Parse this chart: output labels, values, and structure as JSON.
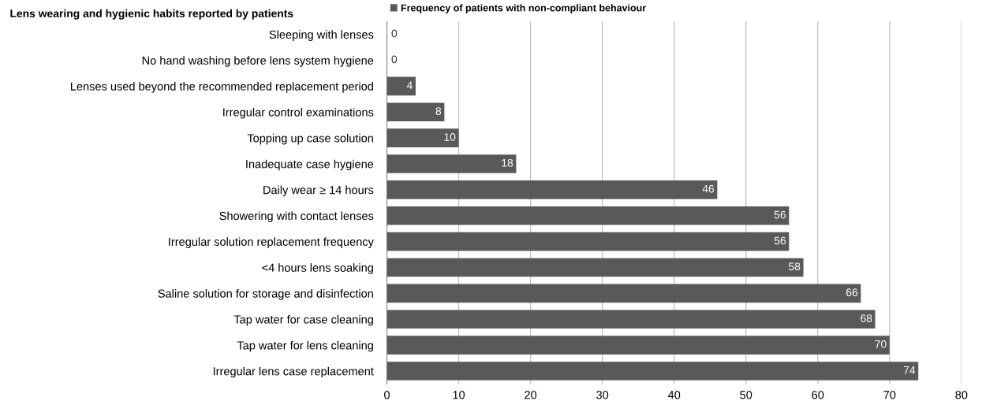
{
  "chart_data": {
    "type": "bar",
    "orientation": "horizontal",
    "title": "Lens wearing and hygienic habits reported by patients",
    "categories": [
      "Sleeping with lenses",
      "No hand washing before lens system hygiene",
      "Lenses used beyond the recommended replacement period",
      "Irregular control examinations",
      "Topping up case solution",
      "Inadequate case hygiene",
      "Daily wear ≥ 14 hours",
      "Showering with contact lenses",
      "Irregular solution replacement frequency",
      "<4 hours lens soaking",
      "Saline solution for storage and disinfection",
      "Tap water for case cleaning",
      "Tap water for lens cleaning",
      "Irregular lens case replacement"
    ],
    "series": [
      {
        "name": "Frequency of patients with non-compliant behaviour",
        "color": "#595959",
        "values": [
          0,
          0,
          4,
          8,
          10,
          18,
          46,
          56,
          56,
          58,
          66,
          68,
          70,
          74
        ]
      }
    ],
    "xlim": [
      0,
      80
    ],
    "xticks": [
      0,
      10,
      20,
      30,
      40,
      50,
      60,
      70,
      80
    ],
    "grid": "x",
    "legend": "top",
    "data_labels": true
  }
}
